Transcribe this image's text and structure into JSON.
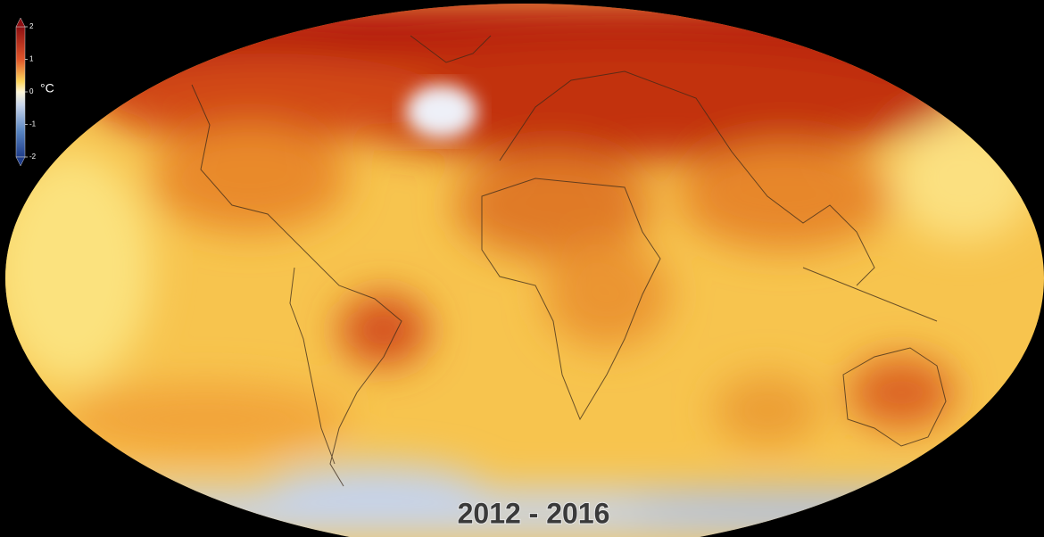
{
  "colorbar": {
    "range": [
      -2,
      2
    ],
    "ticks": [
      2,
      1,
      0,
      -1,
      -2
    ],
    "unit": "°C"
  },
  "period": "2012 - 2016"
}
